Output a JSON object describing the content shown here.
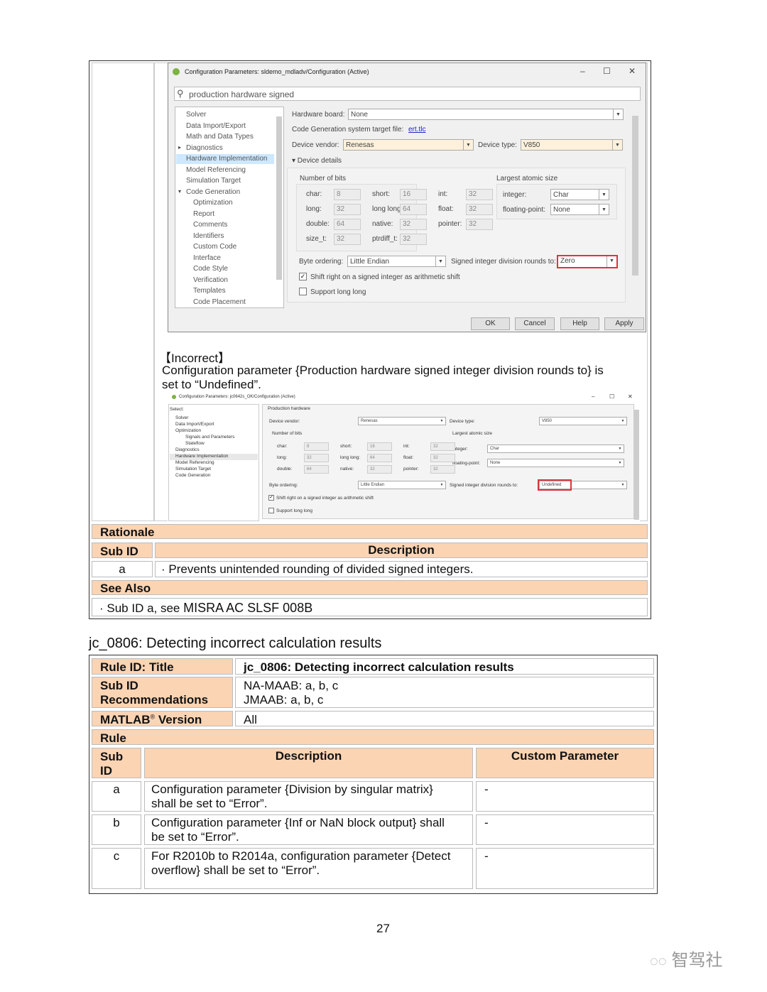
{
  "dialog1": {
    "title": "Configuration Parameters: sldemo_mdladv/Configuration (Active)",
    "window_controls": [
      "–",
      "☐",
      "✕"
    ],
    "search": "production hardware signed",
    "tree": [
      {
        "label": "Solver",
        "level": 0
      },
      {
        "label": "Data Import/Export",
        "level": 0
      },
      {
        "label": "Math and Data Types",
        "level": 0
      },
      {
        "label": "Diagnostics",
        "level": 0,
        "expander": "▸"
      },
      {
        "label": "Hardware Implementation",
        "level": 0,
        "selected": true
      },
      {
        "label": "Model Referencing",
        "level": 0
      },
      {
        "label": "Simulation Target",
        "level": 0
      },
      {
        "label": "Code Generation",
        "level": 0,
        "expander": "▾"
      },
      {
        "label": "Optimization",
        "level": 1
      },
      {
        "label": "Report",
        "level": 1
      },
      {
        "label": "Comments",
        "level": 1
      },
      {
        "label": "Identifiers",
        "level": 1
      },
      {
        "label": "Custom Code",
        "level": 1
      },
      {
        "label": "Interface",
        "level": 1
      },
      {
        "label": "Code Style",
        "level": 1
      },
      {
        "label": "Verification",
        "level": 1
      },
      {
        "label": "Templates",
        "level": 1
      },
      {
        "label": "Code Placement",
        "level": 1
      }
    ],
    "hardware_board_label": "Hardware board:",
    "hardware_board": "None",
    "target_file_label": "Code Generation system target file:",
    "target_file": "ert.tlc",
    "device_vendor_label": "Device vendor:",
    "device_vendor": "Renesas",
    "device_type_label": "Device type:",
    "device_type": "V850",
    "device_details": "▾ Device details",
    "bits_title": "Number of bits",
    "bits": [
      [
        "char:",
        "8"
      ],
      [
        "short:",
        "16"
      ],
      [
        "int:",
        "32"
      ],
      [
        "long:",
        "32"
      ],
      [
        "long long:",
        "64"
      ],
      [
        "float:",
        "32"
      ],
      [
        "double:",
        "64"
      ],
      [
        "native:",
        "32"
      ],
      [
        "pointer:",
        "32"
      ],
      [
        "size_t:",
        "32"
      ],
      [
        "ptrdiff_t:",
        "32"
      ]
    ],
    "atomic_title": "Largest atomic size",
    "atomic_integer_label": "integer:",
    "atomic_integer": "Char",
    "atomic_float_label": "floating-point:",
    "atomic_float": "None",
    "byte_ordering_label": "Byte ordering:",
    "byte_ordering": "Little Endian",
    "division_label": "Signed integer division rounds to:",
    "division": "Zero",
    "shift_label": "Shift right on a signed integer as arithmetic shift",
    "shift_checked": true,
    "longlong_label": "Support long long",
    "longlong_checked": false,
    "buttons": [
      "OK",
      "Cancel",
      "Help",
      "Apply"
    ]
  },
  "incorrect": {
    "heading": "【Incorrect】",
    "text1": "Configuration parameter {Production hardware signed integer division rounds to} is",
    "text2": "set to “Undefined”."
  },
  "dialog2": {
    "title": "Configuration Parameters: jc0642s_OK/Configuration (Active)",
    "window_controls": [
      "–",
      "☐",
      "✕"
    ],
    "tree": [
      "Select:",
      "Solver",
      "Data Import/Export",
      "Optimization",
      "Signals and Parameters",
      "Stateflow",
      "Diagnostics",
      "Hardware Implementation",
      "Model Referencing",
      "Simulation Target",
      "Code Generation"
    ],
    "group": "Production hardware",
    "device_vendor_label": "Device vendor:",
    "device_vendor": "Renesas",
    "device_type_label": "Device type:",
    "device_type": "V850",
    "bits_title": "Number of bits",
    "bits": [
      [
        "char:",
        "8"
      ],
      [
        "short:",
        "16"
      ],
      [
        "int:",
        "32"
      ],
      [
        "long:",
        "32"
      ],
      [
        "long long:",
        "64"
      ],
      [
        "float:",
        "32"
      ],
      [
        "double:",
        "64"
      ],
      [
        "native:",
        "32"
      ],
      [
        "pointer:",
        "32"
      ]
    ],
    "atomic_title": "Largest atomic size",
    "atomic_integer_label": "integer:",
    "atomic_integer": "Char",
    "atomic_float_label": "floating-point:",
    "atomic_float": "None",
    "byte_ordering_label": "Byte ordering:",
    "byte_ordering": "Little Endian",
    "division_label": "Signed integer division rounds to:",
    "division": "Undefined",
    "shift_label": "Shift right on a signed integer as arithmetic shift",
    "longlong_label": "Support long long"
  },
  "rationale": {
    "title": "Rationale",
    "col_subid": "Sub ID",
    "col_desc": "Description",
    "row_id": "a",
    "row_desc": "· Prevents unintended rounding of divided signed integers."
  },
  "see_also": {
    "title": "See Also",
    "prefix": "· Sub ID a, see ",
    "ref": "MISRA AC SLSF 008B"
  },
  "section_heading": "jc_0806: Detecting incorrect calculation results",
  "rule_table": {
    "rule_id_label": "Rule ID: Title",
    "rule_id": "jc_0806: Detecting incorrect calculation results",
    "subid_label1": "Sub ID",
    "subid_label2": "Recommendations",
    "rec1": "NA-MAAB: a, b, c",
    "rec2": "JMAAB: a, b, c",
    "matlab_label": "MATLAB",
    "matlab_sup": "®",
    "matlab_label2": " Version",
    "matlab_value": "All",
    "rule_label": "Rule",
    "col_sub1": "Sub",
    "col_sub2": "ID",
    "col_desc": "Description",
    "col_custom": "Custom Parameter",
    "rows": [
      {
        "id": "a",
        "l1": "Configuration parameter {Division by singular matrix}",
        "l2": "shall be set to “Error”.",
        "custom": "-"
      },
      {
        "id": "b",
        "l1": "Configuration parameter {Inf or NaN block output} shall",
        "l2": "be set to “Error”.",
        "custom": "-"
      },
      {
        "id": "c",
        "l1": "For R2010b to R2014a, configuration parameter {Detect",
        "l2": "overflow} shall be set to “Error”.",
        "custom": "-"
      }
    ]
  },
  "page_number": "27",
  "watermark": "智驾社",
  "colors": {
    "header_fill": "#fbd4b4",
    "highlight": "#d9363e",
    "selection": "#cde8ff"
  }
}
